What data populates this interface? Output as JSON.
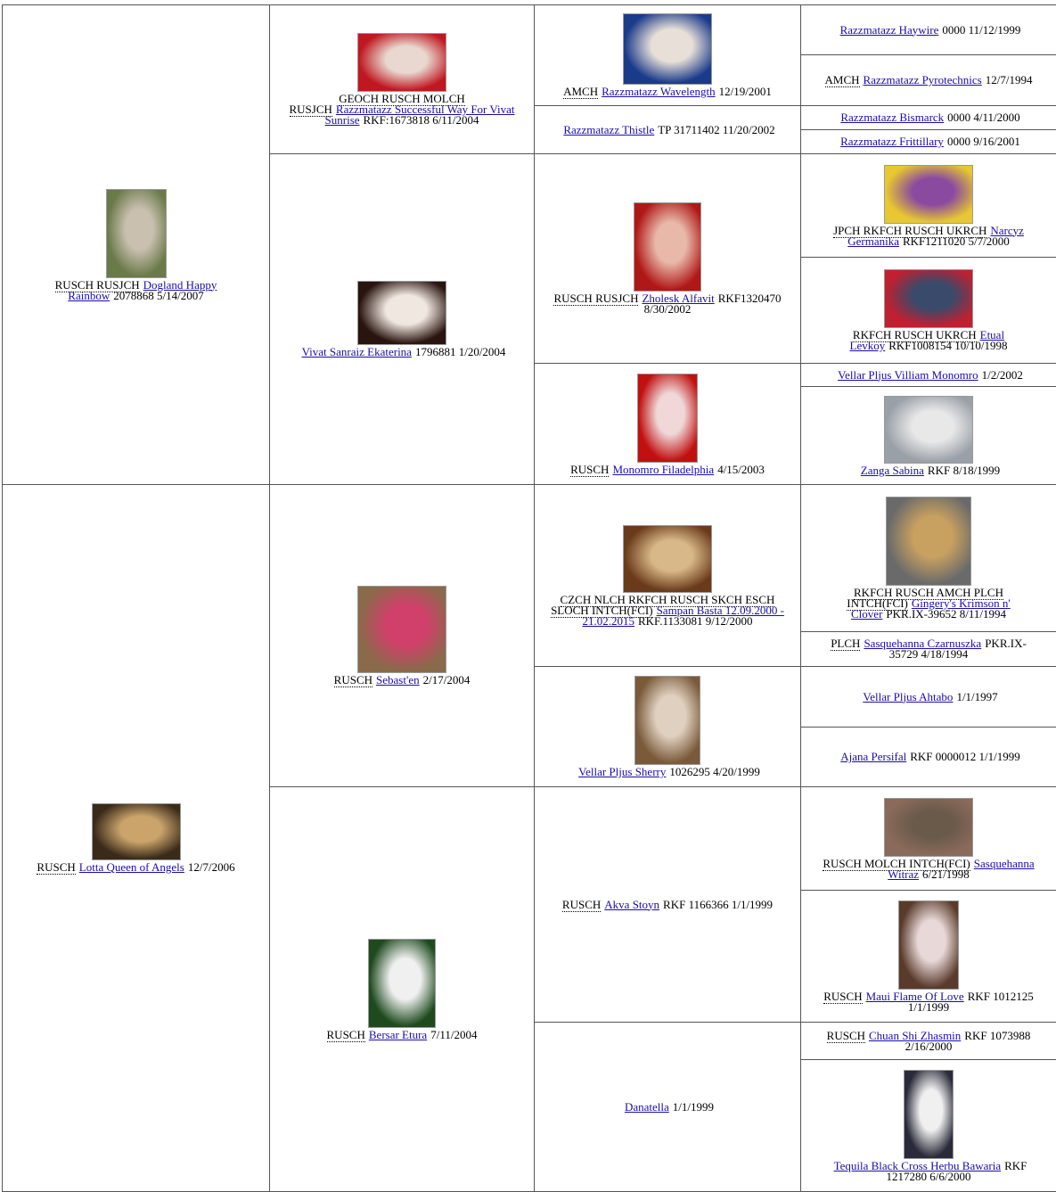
{
  "pedigree": {
    "dogs": [
      {
        "titles": "RUSCH RUSJCH",
        "name": "Dogland Happy Rainbow",
        "info": "2078868 5/14/2007"
      },
      {
        "titles": "RUSCH",
        "name": "Lotta Queen of Angels",
        "info": "12/7/2006"
      },
      {
        "titles": "GEOCH RUSCH MOLCH RUSJCH",
        "name": "Razzmatazz Successful Way For Vivat Sunrise",
        "info": "RKF:1673818 6/11/2004"
      },
      {
        "name": "Vivat Sanraiz Ekaterina",
        "info": "1796881 1/20/2004"
      },
      {
        "titles": "RUSCH",
        "name": "Sebast'en",
        "info": "2/17/2004"
      },
      {
        "titles": "RUSCH",
        "name": "Bersar Etura",
        "info": "7/11/2004"
      },
      {
        "titles": "AMCH",
        "name": "Razzmatazz Wavelength",
        "info": "12/19/2001"
      },
      {
        "name": "Razzmatazz Thistle",
        "info": "TP 31711402 11/20/2002"
      },
      {
        "titles": "RUSCH RUSJCH",
        "name": "Zholesk Alfavit",
        "info": "RKF1320470 8/30/2002"
      },
      {
        "titles": "RUSCH",
        "name": "Monomro Filadelphia",
        "info": "4/15/2003"
      },
      {
        "titles": "CZCH NLCH RKFCH RUSCH SKCH ESCH SLOCH INTCH(FCI)",
        "name": "Sampan Basta 12.09.2000 - 21.02.2015",
        "info": "RKF.1133081 9/12/2000"
      },
      {
        "name": "Vellar Pljus Sherry",
        "info": "1026295 4/20/1999"
      },
      {
        "titles": "RUSCH",
        "name": "Akva Stoyn",
        "info": "RKF 1166366 1/1/1999"
      },
      {
        "name": "Danatella",
        "info": "1/1/1999"
      },
      {
        "name": "Razzmatazz Haywire",
        "info": "0000 11/12/1999"
      },
      {
        "titles": "AMCH",
        "name": "Razzmatazz Pyrotechnics",
        "info": "12/7/1994"
      },
      {
        "name": "Razzmatazz Bismarck",
        "info": "0000 4/11/2000"
      },
      {
        "name": "Razzmatazz Frittillary",
        "info": "0000 9/16/2001"
      },
      {
        "titles": "JPCH RKFCH RUSCH UKRCH",
        "name": "Narcyz Germanika",
        "info": "RKF1211020 5/7/2000"
      },
      {
        "titles": "RKFCH RUSCH UKRCH",
        "name": "Etual Levkoy",
        "info": "RKF1008154 10/10/1998"
      },
      {
        "name": "Vellar Pljus Villiam Monomro",
        "info": "1/2/2002"
      },
      {
        "name": "Zanga Sabina",
        "info": "RKF 8/18/1999"
      },
      {
        "titles": "RKFCH RUSCH AMCH PLCH INTCH(FCI)",
        "name": "Gingery's Krimson n' Clover",
        "info": "PKR.IX-39652 8/11/1994"
      },
      {
        "titles": "PLCH",
        "name": "Sasquehanna Czarnuszka",
        "info": "PKR.IX-35729 4/18/1994"
      },
      {
        "name": "Vellar Pljus Ahtabo",
        "info": "1/1/1997"
      },
      {
        "name": "Ajana Persifal",
        "info": "RKF 0000012 1/1/1999"
      },
      {
        "titles": "RUSCH MOLCH INTCH(FCI)",
        "name": "Sasquehanna Witraz",
        "info": "6/21/1998"
      },
      {
        "titles": "RUSCH",
        "name": "Maui Flame Of Love",
        "info": "RKF 1012125 1/1/1999"
      },
      {
        "titles": "RUSCH",
        "name": "Chuan Shi Zhasmin",
        "info": "RKF 1073988 2/16/2000"
      },
      {
        "name": "Tequila Black Cross Herbu Bawaria",
        "info": "RKF 1217280 6/6/2000"
      }
    ]
  }
}
